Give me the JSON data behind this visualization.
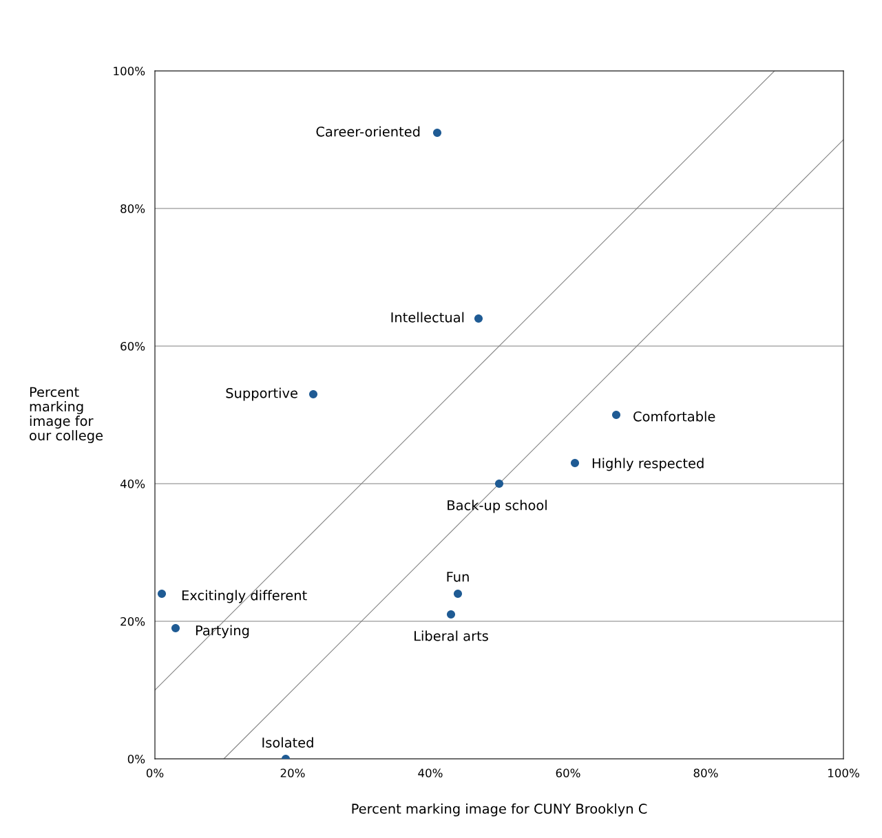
{
  "chart_data": {
    "type": "scatter",
    "xlabel": "Percent marking image for CUNY Brooklyn C",
    "ylabel": "Percent\nmarking\nimage for\nour college",
    "xlim": [
      0,
      100
    ],
    "ylim": [
      0,
      100
    ],
    "xticks": [
      {
        "value": 0,
        "label": "0%"
      },
      {
        "value": 20,
        "label": "20%"
      },
      {
        "value": 40,
        "label": "40%"
      },
      {
        "value": 60,
        "label": "60%"
      },
      {
        "value": 80,
        "label": "80%"
      },
      {
        "value": 100,
        "label": "100%"
      }
    ],
    "yticks": [
      {
        "value": 0,
        "label": "0%"
      },
      {
        "value": 20,
        "label": "20%"
      },
      {
        "value": 40,
        "label": "40%"
      },
      {
        "value": 60,
        "label": "60%"
      },
      {
        "value": 80,
        "label": "80%"
      },
      {
        "value": 100,
        "label": "100%"
      }
    ],
    "grid": "y",
    "series": [
      {
        "marker": "circle",
        "color": "#1f5b94",
        "x": [
          41,
          47,
          23,
          67,
          61,
          50,
          44,
          43,
          1,
          3,
          19
        ],
        "values": [
          91,
          64,
          53,
          50,
          43,
          40,
          24,
          21,
          24,
          19,
          0
        ]
      },
      {
        "type": "line",
        "marker": "none",
        "color": "#808080",
        "x": [
          0,
          90
        ],
        "values": [
          10,
          100
        ]
      },
      {
        "type": "line",
        "marker": "none",
        "color": "#808080",
        "x": [
          10,
          100
        ],
        "values": [
          0,
          90
        ]
      }
    ],
    "annotations": [
      {
        "text": "Career-oriented",
        "x": 41,
        "y": 91
      },
      {
        "text": "Intellectual",
        "x": 47,
        "y": 64
      },
      {
        "text": "Supportive",
        "x": 23,
        "y": 53
      },
      {
        "text": "Comfortable",
        "x": 67,
        "y": 50
      },
      {
        "text": "Highly respected",
        "x": 61,
        "y": 43
      },
      {
        "text": "Back-up school",
        "x": 50,
        "y": 40
      },
      {
        "text": "Fun",
        "x": 44,
        "y": 24
      },
      {
        "text": "Liberal arts",
        "x": 43,
        "y": 21
      },
      {
        "text": "Excitingly different",
        "x": 1,
        "y": 24
      },
      {
        "text": "Partying",
        "x": 3,
        "y": 19
      },
      {
        "text": "Isolated",
        "x": 19,
        "y": 0
      }
    ]
  }
}
